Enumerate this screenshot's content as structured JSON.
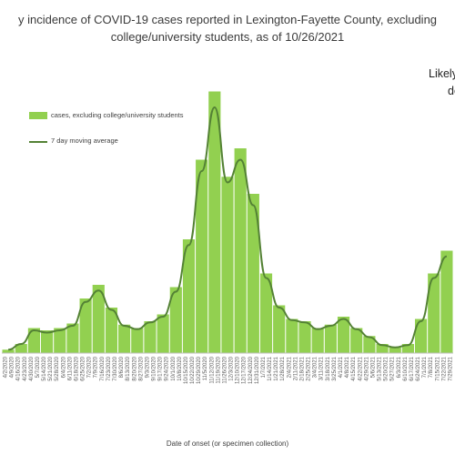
{
  "title_lines": [
    "y incidence of COVID-19 cases reported in Lexington-Fayette County, excluding",
    "college/university students, as of 10/26/2021"
  ],
  "note_lines": [
    "Likely",
    "de"
  ],
  "colors": {
    "bars": "#92d050",
    "moving_average": "#548235",
    "axis": "#bfbfbf"
  },
  "chart_data": {
    "type": "bar",
    "title": "y incidence of COVID-19 cases reported in Lexington-Fayette County, excluding college/university students, as of 10/26/2021",
    "xlabel": "Date of onset (or specimen collection)",
    "ylabel": "",
    "legend_position": "top-left",
    "grid": false,
    "categories": [
      "4/2/2020",
      "4/16/2020",
      "4/30/2020",
      "5/14/2020",
      "5/28/2020",
      "6/11/2020",
      "6/25/2020",
      "7/9/2020",
      "7/23/2020",
      "8/6/2020",
      "8/20/2020",
      "9/3/2020",
      "9/17/2020",
      "10/1/2020",
      "10/15/2020",
      "10/29/2020",
      "11/12/2020",
      "11/26/2020",
      "12/10/2020",
      "12/24/2020",
      "1/7/2021",
      "1/21/2021",
      "2/4/2021",
      "2/18/2021",
      "3/4/2021",
      "3/18/2021",
      "4/1/2021",
      "4/15/2021",
      "4/29/2021",
      "5/13/2021",
      "5/27/2021",
      "6/10/2021",
      "6/24/2021",
      "7/8/2021",
      "7/22/2021"
    ],
    "series": [
      {
        "name": "cases, excluding college/university students",
        "values": [
          3,
          8,
          22,
          20,
          22,
          26,
          48,
          60,
          40,
          25,
          22,
          28,
          34,
          58,
          100,
          170,
          230,
          155,
          180,
          140,
          70,
          42,
          30,
          28,
          22,
          25,
          32,
          22,
          15,
          8,
          5,
          8,
          30,
          70,
          90
        ]
      },
      {
        "name": "7 day moving average",
        "values": [
          3,
          8,
          20,
          18,
          20,
          24,
          45,
          55,
          38,
          24,
          21,
          27,
          32,
          54,
          95,
          160,
          216,
          150,
          170,
          130,
          66,
          40,
          29,
          27,
          21,
          24,
          30,
          21,
          14,
          7,
          5,
          7,
          28,
          66,
          85
        ]
      }
    ],
    "ylim": [
      0,
      240
    ],
    "tick_labels": [
      "4/2/2020",
      "4/9/2020",
      "4/16/2020",
      "4/23/2020",
      "4/30/2020",
      "5/7/2020",
      "5/14/2020",
      "5/21/2020",
      "5/28/2020",
      "6/4/2020",
      "6/11/2020",
      "6/18/2020",
      "6/25/2020",
      "7/2/2020",
      "7/9/2020",
      "7/16/2020",
      "7/23/2020",
      "7/30/2020",
      "8/6/2020",
      "8/13/2020",
      "8/20/2020",
      "8/27/2020",
      "9/3/2020",
      "9/10/2020",
      "9/17/2020",
      "9/24/2020",
      "10/1/2020",
      "10/8/2020",
      "10/15/2020",
      "10/22/2020",
      "10/29/2020",
      "11/5/2020",
      "11/12/2020",
      "11/19/2020",
      "11/26/2020",
      "12/3/2020",
      "12/10/2020",
      "12/17/2020",
      "12/24/2020",
      "12/31/2020",
      "1/7/2021",
      "1/14/2021",
      "1/21/2021",
      "1/28/2021",
      "2/4/2021",
      "2/11/2021",
      "2/18/2021",
      "2/25/2021",
      "3/4/2021",
      "3/11/2021",
      "3/18/2021",
      "3/25/2021",
      "4/1/2021",
      "4/8/2021",
      "4/15/2021",
      "4/22/2021",
      "4/29/2021",
      "5/6/2021",
      "5/13/2021",
      "5/20/2021",
      "5/27/2021",
      "6/3/2021",
      "6/10/2021",
      "6/17/2021",
      "6/24/2021",
      "7/1/2021",
      "7/8/2021",
      "7/15/2021",
      "7/22/2021",
      "7/29/2021"
    ]
  }
}
